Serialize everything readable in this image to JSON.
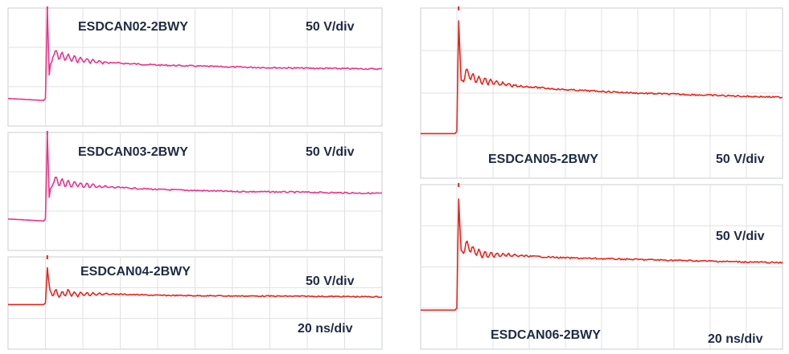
{
  "chart_data": [
    {
      "type": "line",
      "title": "ESDCAN02-2BWY",
      "vertical_scale": "50 V/div",
      "color": "#e8338a",
      "grid": true,
      "x_divisions": 10,
      "y_divisions": 3,
      "x_unit": "div",
      "y_unit": "div",
      "waveform": [
        {
          "x": 0,
          "y": 2.3
        },
        {
          "x": 0.95,
          "y": 2.35
        },
        {
          "x": 1.0,
          "y": 2.3
        },
        {
          "x": 1.05,
          "y": 0.0
        },
        {
          "x": 1.1,
          "y": 1.7
        },
        {
          "x": 1.2,
          "y": 1.15
        },
        {
          "x": 1.35,
          "y": 1.2
        },
        {
          "x": 1.55,
          "y": 1.25
        },
        {
          "x": 1.8,
          "y": 1.3
        },
        {
          "x": 2.5,
          "y": 1.38
        },
        {
          "x": 4.0,
          "y": 1.45
        },
        {
          "x": 6.0,
          "y": 1.5
        },
        {
          "x": 8.0,
          "y": 1.53
        },
        {
          "x": 10.0,
          "y": 1.55
        }
      ]
    },
    {
      "type": "line",
      "title": "ESDCAN03-2BWY",
      "vertical_scale": "50 V/div",
      "color": "#e8338a",
      "grid": true,
      "x_divisions": 10,
      "y_divisions": 3,
      "x_unit": "div",
      "y_unit": "div",
      "waveform": [
        {
          "x": 0,
          "y": 2.2
        },
        {
          "x": 0.95,
          "y": 2.25
        },
        {
          "x": 1.0,
          "y": 2.2
        },
        {
          "x": 1.05,
          "y": 0.0
        },
        {
          "x": 1.1,
          "y": 1.65
        },
        {
          "x": 1.2,
          "y": 1.2
        },
        {
          "x": 1.35,
          "y": 1.25
        },
        {
          "x": 1.55,
          "y": 1.3
        },
        {
          "x": 1.8,
          "y": 1.32
        },
        {
          "x": 2.5,
          "y": 1.38
        },
        {
          "x": 4.0,
          "y": 1.45
        },
        {
          "x": 6.0,
          "y": 1.5
        },
        {
          "x": 8.0,
          "y": 1.52
        },
        {
          "x": 10.0,
          "y": 1.55
        }
      ]
    },
    {
      "type": "line",
      "title": "ESDCAN04-2BWY",
      "vertical_scale": "50 V/div",
      "horizontal_scale": "20 ns/div",
      "color": "#e8231c",
      "grid": true,
      "x_divisions": 10,
      "y_divisions": 3,
      "x_unit": "div",
      "y_unit": "div",
      "waveform": [
        {
          "x": 0,
          "y": 1.55
        },
        {
          "x": 0.95,
          "y": 1.55
        },
        {
          "x": 1.0,
          "y": 1.5
        },
        {
          "x": 1.05,
          "y": 0.35
        },
        {
          "x": 1.12,
          "y": 1.2
        },
        {
          "x": 1.25,
          "y": 1.15
        },
        {
          "x": 1.4,
          "y": 1.25
        },
        {
          "x": 1.6,
          "y": 1.15
        },
        {
          "x": 1.8,
          "y": 1.22
        },
        {
          "x": 2.5,
          "y": 1.2
        },
        {
          "x": 4.0,
          "y": 1.25
        },
        {
          "x": 6.0,
          "y": 1.27
        },
        {
          "x": 8.0,
          "y": 1.28
        },
        {
          "x": 10.0,
          "y": 1.3
        }
      ]
    },
    {
      "type": "line",
      "title": "ESDCAN05-2BWY",
      "vertical_scale": "50 V/div",
      "color": "#e8231c",
      "grid": true,
      "x_divisions": 10,
      "y_divisions": 4,
      "x_unit": "div",
      "y_unit": "div",
      "waveform": [
        {
          "x": 0,
          "y": 2.95
        },
        {
          "x": 0.95,
          "y": 2.95
        },
        {
          "x": 1.0,
          "y": 2.9
        },
        {
          "x": 1.05,
          "y": 0.3
        },
        {
          "x": 1.12,
          "y": 1.8
        },
        {
          "x": 1.25,
          "y": 1.5
        },
        {
          "x": 1.45,
          "y": 1.65
        },
        {
          "x": 1.7,
          "y": 1.7
        },
        {
          "x": 2.5,
          "y": 1.82
        },
        {
          "x": 4.0,
          "y": 1.92
        },
        {
          "x": 6.0,
          "y": 2.0
        },
        {
          "x": 8.0,
          "y": 2.05
        },
        {
          "x": 10.0,
          "y": 2.1
        }
      ]
    },
    {
      "type": "line",
      "title": "ESDCAN06-2BWY",
      "vertical_scale": "50 V/div",
      "horizontal_scale": "20 ns/div",
      "color": "#e8231c",
      "grid": true,
      "x_divisions": 10,
      "y_divisions": 4,
      "x_unit": "div",
      "y_unit": "div",
      "waveform": [
        {
          "x": 0,
          "y": 3.05
        },
        {
          "x": 0.95,
          "y": 3.05
        },
        {
          "x": 1.0,
          "y": 3.0
        },
        {
          "x": 1.05,
          "y": 0.35
        },
        {
          "x": 1.12,
          "y": 1.7
        },
        {
          "x": 1.25,
          "y": 1.45
        },
        {
          "x": 1.45,
          "y": 1.6
        },
        {
          "x": 1.7,
          "y": 1.7
        },
        {
          "x": 2.5,
          "y": 1.72
        },
        {
          "x": 4.0,
          "y": 1.78
        },
        {
          "x": 6.0,
          "y": 1.82
        },
        {
          "x": 8.0,
          "y": 1.86
        },
        {
          "x": 10.0,
          "y": 1.9
        }
      ]
    }
  ]
}
